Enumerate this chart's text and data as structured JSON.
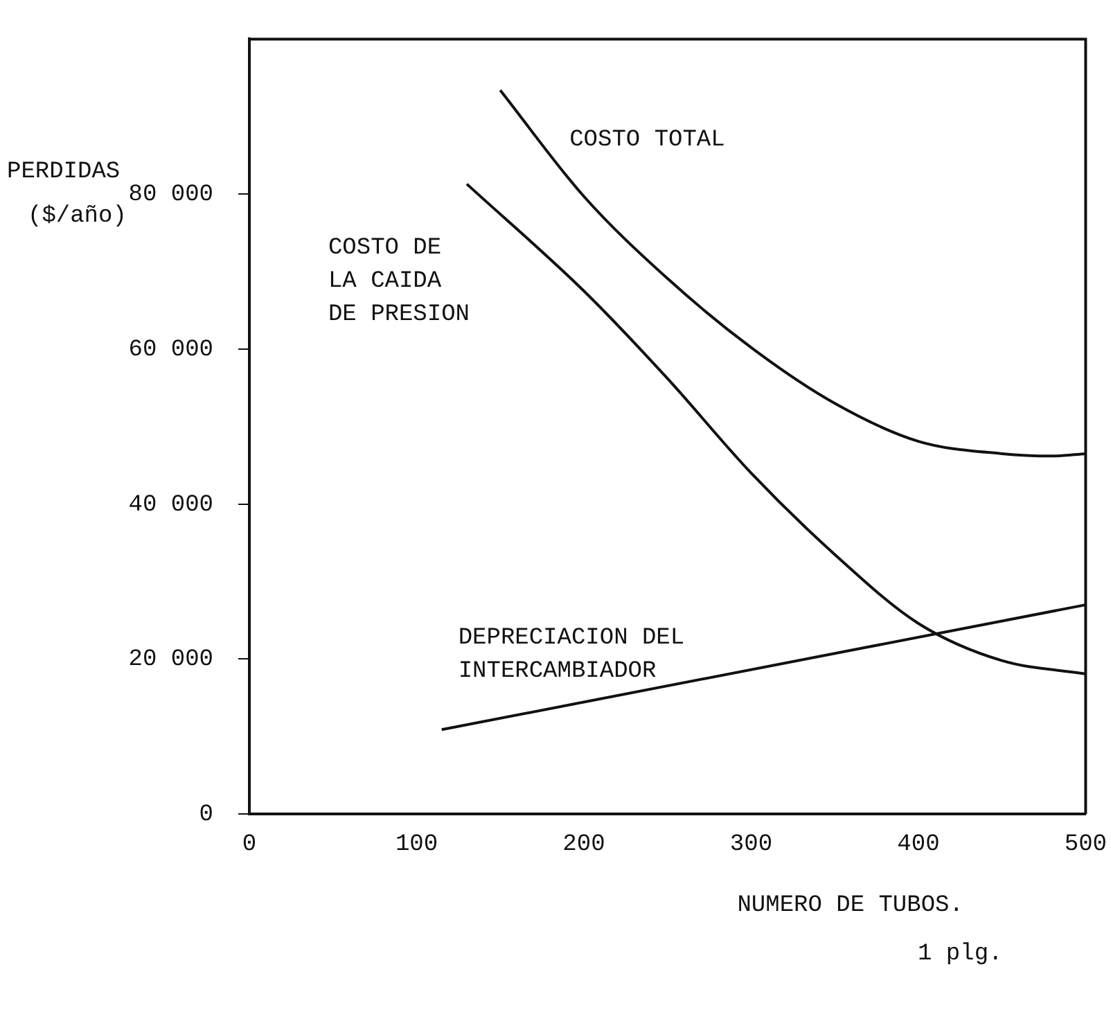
{
  "chart_data": {
    "type": "line",
    "ylabel": "PERDIDAS ($/año)",
    "xlabel": "NUMERO DE TUBOS.",
    "annotations": [
      "1 plg."
    ],
    "xlim": [
      0,
      500
    ],
    "xticks": [
      0,
      100,
      200,
      300,
      400,
      500
    ],
    "ylim": [
      0,
      100000
    ],
    "yticks": [
      0,
      {
        "value": 20000,
        "label": "20 000"
      },
      {
        "value": 40000,
        "label": "40 000"
      },
      {
        "value": 60000,
        "label": "60 000"
      },
      {
        "value": 80000,
        "label": "80 000"
      }
    ],
    "grid": false,
    "legend": false,
    "marker": "none",
    "line_style": "solid",
    "series": [
      {
        "name": "COSTO TOTAL",
        "color": "#111111",
        "x": [
          150,
          200,
          250,
          300,
          350,
          400,
          450,
          480,
          500
        ],
        "values": [
          93400,
          79700,
          69100,
          60200,
          53000,
          48100,
          46500,
          46200,
          46500
        ]
      },
      {
        "name": "COSTO DE LA CAIDA DE PRESION",
        "color": "#111111",
        "x": [
          130,
          200,
          250,
          300,
          350,
          400,
          450,
          500
        ],
        "values": [
          81300,
          67500,
          56200,
          44000,
          33500,
          24600,
          19800,
          18100
        ]
      },
      {
        "name": "DEPRECIACION DEL INTERCAMBIADOR",
        "color": "#111111",
        "x": [
          115,
          500
        ],
        "values": [
          10900,
          27000
        ]
      }
    ]
  }
}
